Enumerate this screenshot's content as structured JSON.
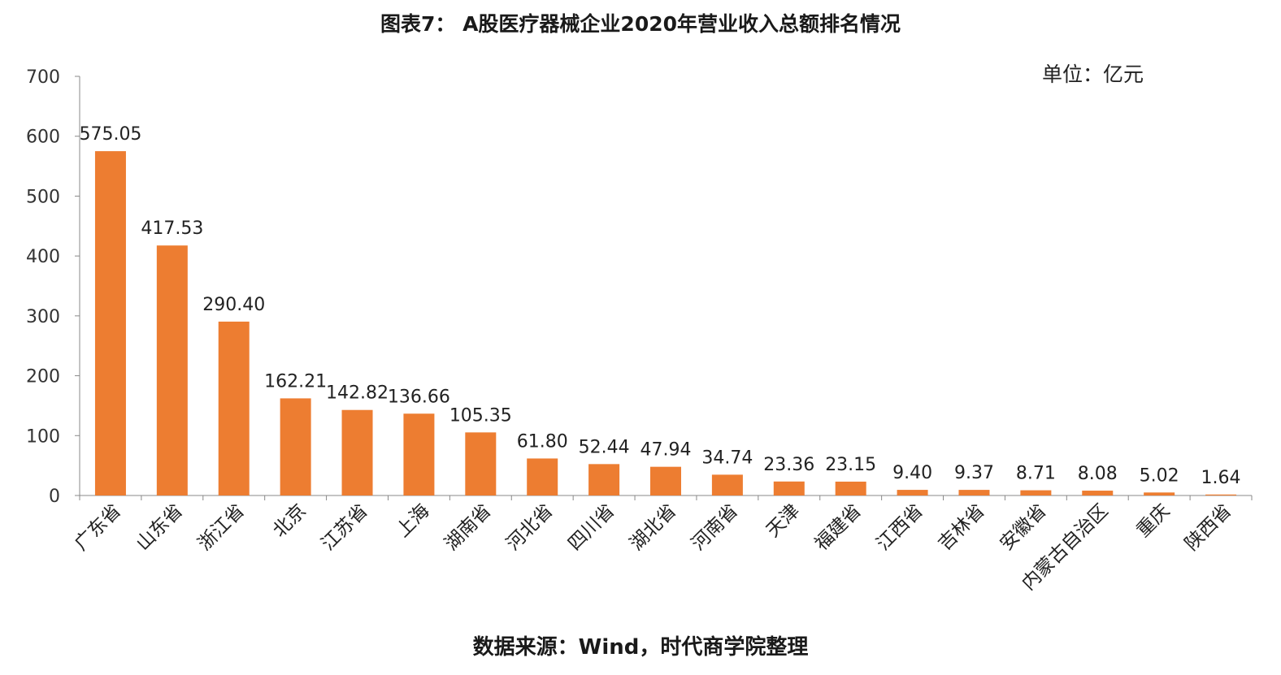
{
  "title": "图表7： A股医疗器械企业2020年营业收入总额排名情况",
  "unit_label": "单位：亿元",
  "source": "数据来源：Wind，时代商学院整理",
  "chart_data": {
    "type": "bar",
    "title": "图表7： A股医疗器械企业2020年营业收入总额排名情况",
    "xlabel": "",
    "ylabel": "",
    "ylim": [
      0,
      700
    ],
    "yticks": [
      0,
      100,
      200,
      300,
      400,
      500,
      600,
      700
    ],
    "grid": false,
    "bar_color": "#ED7D31",
    "categories": [
      "广东省",
      "山东省",
      "浙江省",
      "北京",
      "江苏省",
      "上海",
      "湖南省",
      "河北省",
      "四川省",
      "湖北省",
      "河南省",
      "天津",
      "福建省",
      "江西省",
      "吉林省",
      "安徽省",
      "内蒙古自治区",
      "重庆",
      "陕西省"
    ],
    "values": [
      575.05,
      417.53,
      290.4,
      162.21,
      142.82,
      136.66,
      105.35,
      61.8,
      52.44,
      47.94,
      34.74,
      23.36,
      23.15,
      9.4,
      9.37,
      8.71,
      8.08,
      5.02,
      1.64
    ],
    "data_labels": [
      "575.05",
      "417.53",
      "290.40",
      "162.21",
      "142.82",
      "136.66",
      "105.35",
      "61.80",
      "52.44",
      "47.94",
      "34.74",
      "23.36",
      "23.15",
      "9.40",
      "9.37",
      "8.71",
      "8.08",
      "5.02",
      "1.64"
    ]
  }
}
